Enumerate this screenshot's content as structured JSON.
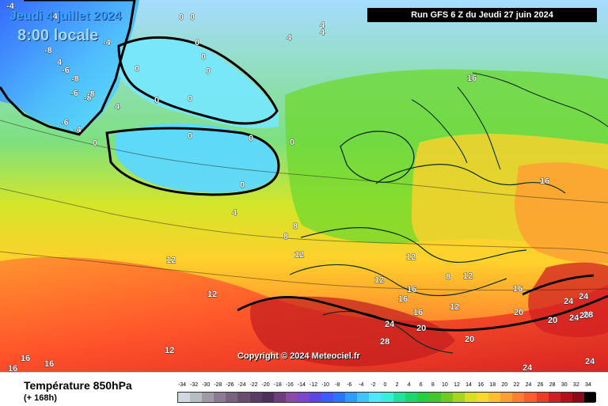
{
  "header": {
    "date": "Jeudi 4 juillet 2024",
    "time": "8:00 locale",
    "run": "Run GFS 6 Z du Jeudi 27 juin 2024"
  },
  "copyright": "Copyright © 2024 Meteociel.fr",
  "footer": {
    "title": "Température 850hPa",
    "subtitle": "(+ 168h)"
  },
  "scale": {
    "labels": [
      "-34",
      "-32",
      "-30",
      "-28",
      "-26",
      "-24",
      "-22",
      "-20",
      "-18",
      "-16",
      "-14",
      "-12",
      "-10",
      "-8",
      "-6",
      "-4",
      "-2",
      "0",
      "2",
      "4",
      "6",
      "8",
      "10",
      "12",
      "14",
      "16",
      "18",
      "20",
      "22",
      "24",
      "26",
      "28",
      "30",
      "32",
      "34"
    ],
    "colors": [
      "#cfd7df",
      "#b7bcc3",
      "#9f9aa4",
      "#8c7b93",
      "#7a6281",
      "#6b4d72",
      "#5b3b63",
      "#4f2f59",
      "#6e3c7f",
      "#8c4aa6",
      "#7d44cd",
      "#5c45e4",
      "#3f58ff",
      "#2a74ff",
      "#2e9dff",
      "#3fc4ff",
      "#4fe6ff",
      "#34f0d8",
      "#20e39f",
      "#19d86f",
      "#26cf3f",
      "#43c52d",
      "#6fcb22",
      "#a6d51f",
      "#d8df1f",
      "#f6d92a",
      "#ffbf2f",
      "#ff9f33",
      "#ff7f30",
      "#ff5d2c",
      "#ef3a26",
      "#d11f22",
      "#b4101c",
      "#8a0a18",
      "#000000"
    ]
  },
  "map_labels": [
    "0",
    "0",
    "0",
    "0",
    "0",
    "0",
    "0",
    "0",
    "0",
    "0",
    "0",
    "0",
    "4",
    "4",
    "4",
    "4",
    "4",
    "4",
    "4",
    "-4",
    "-4",
    "-6",
    "-8",
    "-8",
    "-8",
    "-8",
    "-6",
    "-6",
    "8",
    "8",
    "8",
    "12",
    "12",
    "12",
    "12",
    "12",
    "12",
    "12",
    "16",
    "16",
    "16",
    "16",
    "16",
    "16",
    "16",
    "16",
    "16",
    "20",
    "20",
    "20",
    "20",
    "20",
    "24",
    "24",
    "24",
    "24",
    "24",
    "24",
    "28",
    "28",
    "-8",
    "-8"
  ]
}
